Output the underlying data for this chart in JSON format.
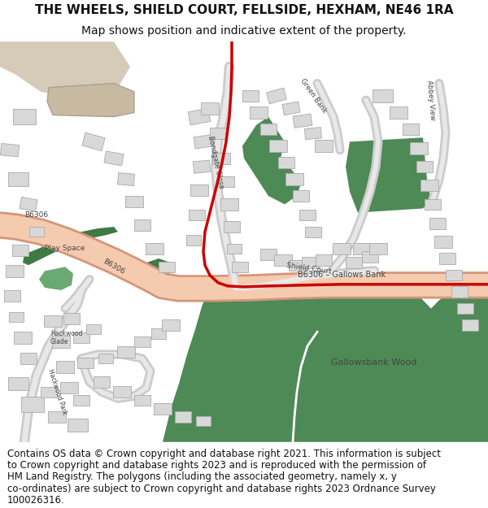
{
  "title_line1": "THE WHEELS, SHIELD COURT, FELLSIDE, HEXHAM, NE46 1RA",
  "title_line2": "Map shows position and indicative extent of the property.",
  "footer_lines": [
    "Contains OS data © Crown copyright and database right 2021. This information is subject",
    "to Crown copyright and database rights 2023 and is reproduced with the permission of",
    "HM Land Registry. The polygons (including the associated geometry, namely x, y",
    "co-ordinates) are subject to Crown copyright and database rights 2023 Ordnance Survey",
    "100026316."
  ],
  "title_fontsize": 11,
  "subtitle_fontsize": 10,
  "footer_fontsize": 8.5,
  "bg_color": "#ffffff",
  "map_bg": "#f8f8f8",
  "road_color": "#f5cbb0",
  "road_border": "#d4967a",
  "green_color": "#4e8a56",
  "building_color": "#d8d8d8",
  "building_border": "#aaaaaa",
  "red_line_color": "#cc0000",
  "label_color": "#444444"
}
